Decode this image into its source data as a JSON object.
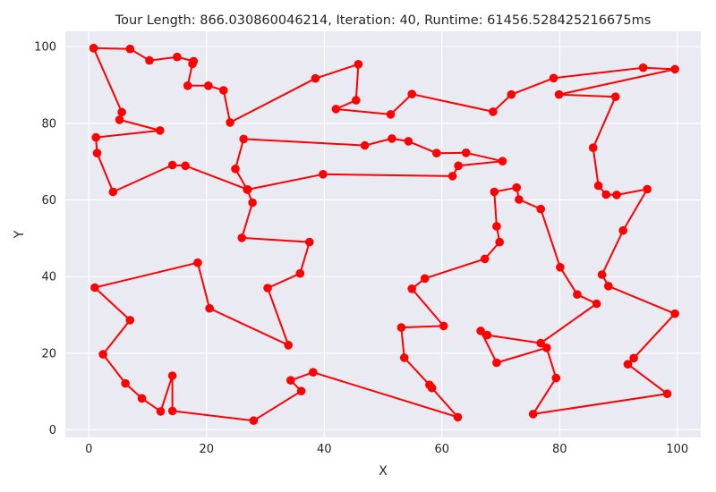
{
  "chart_data": {
    "type": "line",
    "title": "Tour Length: 866.030860046214, Iteration: 40, Runtime: 61456.528425216675ms",
    "xlabel": "X",
    "ylabel": "Y",
    "xlim": [
      -4,
      104
    ],
    "ylim": [
      -2,
      104
    ],
    "xticks": [
      0,
      20,
      40,
      60,
      80,
      100
    ],
    "yticks": [
      0,
      20,
      40,
      60,
      80,
      100
    ],
    "grid": true,
    "line_color": "#ff0000",
    "background_color": "#eaeaf2",
    "series": [
      {
        "x": [
          0.8,
          7.0,
          10.3,
          15.0,
          17.8,
          17.6,
          16.8,
          20.3,
          22.9,
          24.0,
          38.5,
          45.8,
          45.4,
          42.0,
          51.3,
          54.9,
          68.7,
          71.8,
          79.0,
          94.2,
          99.6,
          79.9,
          89.5,
          85.7,
          86.6,
          87.9,
          89.7,
          94.9,
          90.8,
          87.2,
          88.3,
          99.6,
          92.6,
          91.6,
          98.3,
          75.5,
          79.4,
          77.8,
          69.3,
          66.6,
          67.7,
          76.8,
          86.3,
          83.0,
          80.1,
          76.8,
          73.1,
          72.7,
          68.9,
          69.3,
          69.8,
          67.3,
          57.1,
          54.9,
          60.3,
          53.1,
          53.6,
          57.9,
          58.3,
          62.7,
          38.1,
          34.3,
          36.1,
          28.0,
          14.2,
          14.2,
          12.2,
          9.0,
          6.2,
          2.4,
          7.0,
          1.0,
          18.5,
          20.5,
          33.9,
          30.4,
          35.9,
          37.5,
          26.0,
          27.8,
          26.9,
          24.9,
          26.3,
          46.9,
          51.5,
          54.3,
          59.1,
          64.1,
          70.3,
          62.8,
          61.8,
          39.8,
          27.0,
          16.4,
          14.2,
          4.1,
          1.4,
          1.2,
          12.1,
          5.2,
          5.6,
          0.8
        ],
        "y": [
          99.6,
          99.4,
          96.4,
          97.3,
          96.2,
          95.5,
          89.8,
          89.8,
          88.6,
          80.2,
          91.7,
          95.4,
          86.0,
          83.7,
          82.3,
          87.6,
          83.0,
          87.5,
          91.8,
          94.5,
          94.1,
          87.5,
          86.9,
          73.6,
          63.7,
          61.4,
          61.3,
          62.8,
          52.0,
          40.5,
          37.5,
          30.3,
          18.7,
          17.1,
          9.4,
          4.1,
          13.5,
          21.4,
          17.5,
          25.8,
          24.7,
          22.6,
          32.9,
          35.3,
          42.4,
          57.6,
          60.1,
          63.2,
          62.1,
          53.1,
          49.0,
          44.6,
          39.5,
          36.8,
          27.1,
          26.7,
          18.8,
          11.7,
          10.9,
          3.3,
          15.0,
          12.9,
          10.1,
          2.4,
          4.9,
          14.1,
          4.8,
          8.2,
          12.1,
          19.7,
          28.6,
          37.1,
          43.6,
          31.7,
          22.1,
          37.0,
          40.8,
          49.0,
          50.1,
          59.3,
          62.7,
          68.1,
          75.9,
          74.2,
          76.0,
          75.3,
          72.2,
          72.3,
          70.1,
          68.9,
          66.2,
          66.7,
          62.7,
          68.9,
          69.1,
          62.1,
          72.2,
          76.3,
          78.1,
          80.9,
          82.9,
          99.6
        ]
      }
    ]
  }
}
